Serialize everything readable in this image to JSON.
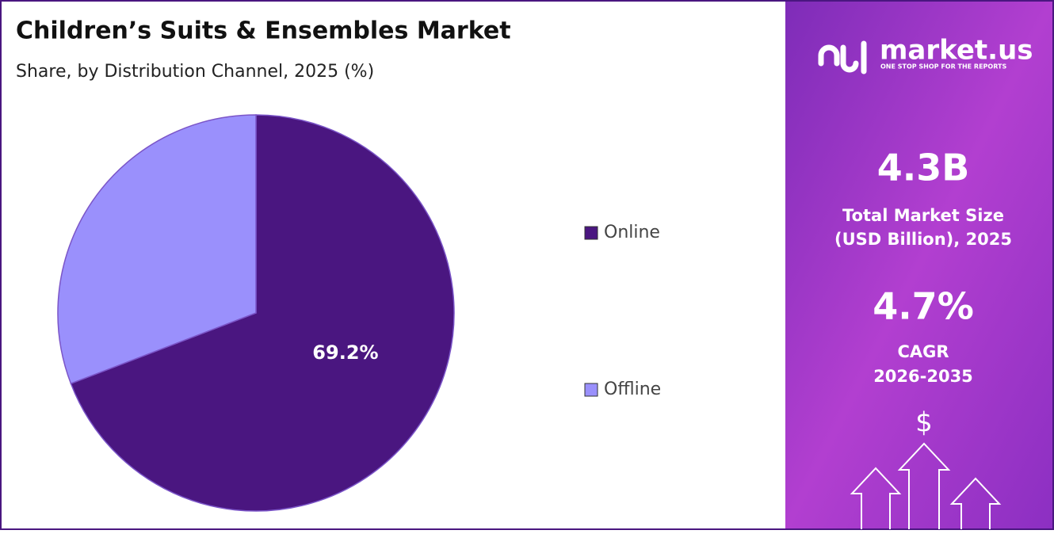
{
  "chart_data": {
    "type": "pie",
    "title": "Children’s Suits & Ensembles Market",
    "subtitle": "Share, by Distribution Channel, 2025 (%)",
    "categories": [
      "Online",
      "Offline"
    ],
    "values": [
      69.2,
      30.8
    ],
    "value_labels": [
      "69.2%",
      null
    ],
    "colors": [
      "#4a1680",
      "#9a90fc"
    ],
    "legend": "right"
  },
  "panel": {
    "logo": "market.us",
    "tagline": "ONE STOP SHOP FOR THE REPORTS",
    "market_size": "4.3B",
    "market_size_label": [
      "Total Market Size",
      "(USD Billion), 2025"
    ],
    "cagr": "4.7%",
    "cagr_label": "CAGR",
    "cagr_period": "2026-2035",
    "icon": "$"
  }
}
